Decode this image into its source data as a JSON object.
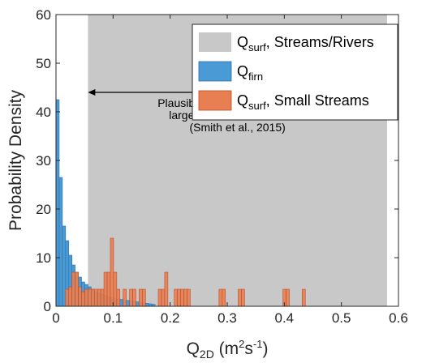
{
  "chart_data": {
    "type": "bar",
    "xlabel": {
      "main": "Q",
      "sub": "2D",
      "units_pre": " (m",
      "units_sup1": "2",
      "units_mid": "s",
      "units_sup2": "-1",
      "units_post": ")"
    },
    "ylabel": "Probability Density",
    "xlim": [
      0,
      0.6
    ],
    "ylim": [
      0,
      60
    ],
    "xticks": [
      0,
      0.1,
      0.2,
      0.3,
      0.4,
      0.5,
      0.6
    ],
    "xtick_labels": [
      "0",
      "0.1",
      "0.2",
      "0.3",
      "0.4",
      "0.5",
      "0.6"
    ],
    "yticks": [
      0,
      10,
      20,
      30,
      40,
      50,
      60
    ],
    "ytick_labels": [
      "0",
      "10",
      "20",
      "30",
      "40",
      "50",
      "60"
    ],
    "shaded_range": {
      "x0": 0.056,
      "x1": 0.58
    },
    "legend": {
      "position": "top-right",
      "entries": [
        {
          "main": "Q",
          "sub": "surf",
          "rest": ", Streams/Rivers",
          "color": "#c8c8c8"
        },
        {
          "main": "Q",
          "sub": "firn",
          "rest": "",
          "color": "#4a9ad6"
        },
        {
          "main": "Q",
          "sub": "surf",
          "rest": ", Small Streams",
          "color": "#e87f52"
        }
      ]
    },
    "annotation": {
      "arrow_x": [
        0.056,
        0.58
      ],
      "arrow_y": 44,
      "lines": [
        "Plausible range of discharge for",
        "large streams 0.7-8 m wide",
        "(Smith et al., 2015)"
      ]
    },
    "bin_width": 0.0056,
    "series": [
      {
        "name": "Q_firn",
        "color": "#4a9ad6",
        "edge": "#2c6fa8",
        "bin_starts": [
          0.0,
          0.0056,
          0.0112,
          0.0168,
          0.0224,
          0.028,
          0.0336,
          0.0392,
          0.0448,
          0.0504,
          0.056,
          0.0616,
          0.0672,
          0.0728,
          0.0784,
          0.084,
          0.0896,
          0.0952,
          0.1008,
          0.1064,
          0.112,
          0.1176,
          0.1232,
          0.1288,
          0.1344,
          0.14,
          0.1456,
          0.1512,
          0.1568,
          0.1624,
          0.168
        ],
        "values": [
          42.5,
          26.5,
          16.5,
          13.5,
          10.5,
          8.5,
          7,
          6,
          5,
          4.5,
          4,
          3.5,
          3,
          2.8,
          2.5,
          2.2,
          2,
          1.8,
          1.6,
          1.5,
          1.4,
          1.3,
          1.2,
          1.1,
          1,
          0.9,
          0.8,
          0.7,
          0.6,
          0.5,
          0.4
        ]
      },
      {
        "name": "Q_surf, Small Streams",
        "color": "#e87f52",
        "edge": "#c24a1f",
        "bin_starts": [
          0.0168,
          0.0224,
          0.028,
          0.0336,
          0.0392,
          0.0448,
          0.0504,
          0.056,
          0.0616,
          0.0672,
          0.0728,
          0.0784,
          0.084,
          0.0896,
          0.0952,
          0.1008,
          0.1064,
          0.1176,
          0.1288,
          0.1344,
          0.1456,
          0.1512,
          0.1792,
          0.1848,
          0.1904,
          0.2072,
          0.2128,
          0.2184,
          0.224,
          0.2296,
          0.2856,
          0.2912,
          0.3192,
          0.3248,
          0.3976,
          0.4032,
          0.4312
        ],
        "values": [
          3.5,
          4,
          7,
          7,
          4,
          3,
          3.5,
          3.5,
          3.5,
          3.5,
          3.5,
          3.5,
          7,
          7,
          14,
          7,
          3.5,
          3.5,
          3.5,
          3.5,
          3.5,
          3.5,
          3.5,
          3.5,
          7,
          3.5,
          3.5,
          3.5,
          3.5,
          3.5,
          3.5,
          3.5,
          3.5,
          3.5,
          3.5,
          3.5,
          3.5
        ]
      }
    ]
  }
}
